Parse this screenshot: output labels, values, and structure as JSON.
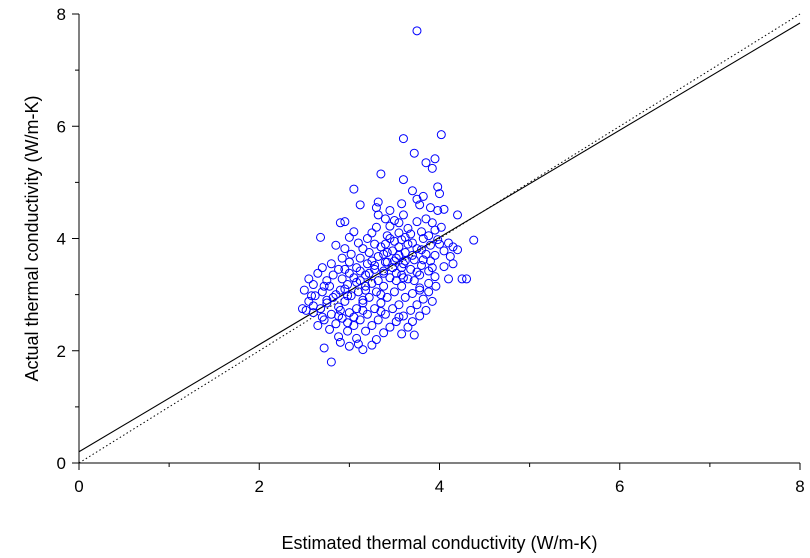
{
  "chart_data": {
    "type": "scatter",
    "title": "",
    "xlabel": "Estimated thermal conductivity (W/m-K)",
    "ylabel": "Actual thermal conductivity (W/m-K)",
    "xlim": [
      0,
      8
    ],
    "ylim": [
      0,
      8
    ],
    "xticks": [
      0,
      2,
      4,
      6,
      8
    ],
    "yticks": [
      0,
      2,
      4,
      6,
      8
    ],
    "xtick_labels": [
      "0",
      "2",
      "4",
      "6",
      "8"
    ],
    "ytick_labels": [
      "0",
      "2",
      "4",
      "6",
      "8"
    ],
    "grid": false,
    "marker": "open-circle",
    "point_color": "#0000ff",
    "regression_line": {
      "intercept": 0.2,
      "slope": 0.955,
      "style": "solid",
      "color": "#000000"
    },
    "identity_line": {
      "intercept": 0.0,
      "slope": 1.0,
      "style": "dotted",
      "color": "#000000"
    },
    "points": [
      [
        3.75,
        7.7
      ],
      [
        4.02,
        5.85
      ],
      [
        3.6,
        5.78
      ],
      [
        3.72,
        5.52
      ],
      [
        3.95,
        5.42
      ],
      [
        3.85,
        5.35
      ],
      [
        3.35,
        5.15
      ],
      [
        3.92,
        5.25
      ],
      [
        3.6,
        5.05
      ],
      [
        3.05,
        4.88
      ],
      [
        3.98,
        4.92
      ],
      [
        4.0,
        4.8
      ],
      [
        3.82,
        4.75
      ],
      [
        3.7,
        4.85
      ],
      [
        3.75,
        4.7
      ],
      [
        3.58,
        4.62
      ],
      [
        3.78,
        4.6
      ],
      [
        3.32,
        4.65
      ],
      [
        3.12,
        4.6
      ],
      [
        3.3,
        4.55
      ],
      [
        3.9,
        4.55
      ],
      [
        3.98,
        4.5
      ],
      [
        4.05,
        4.52
      ],
      [
        4.2,
        4.42
      ],
      [
        3.45,
        4.5
      ],
      [
        3.6,
        4.42
      ],
      [
        3.4,
        4.35
      ],
      [
        2.95,
        4.3
      ],
      [
        2.9,
        4.28
      ],
      [
        3.55,
        4.28
      ],
      [
        3.75,
        4.3
      ],
      [
        3.85,
        4.35
      ],
      [
        3.92,
        4.28
      ],
      [
        3.3,
        4.2
      ],
      [
        3.45,
        4.22
      ],
      [
        3.65,
        4.18
      ],
      [
        3.05,
        4.12
      ],
      [
        3.25,
        4.1
      ],
      [
        3.55,
        4.1
      ],
      [
        3.8,
        4.12
      ],
      [
        3.95,
        4.15
      ],
      [
        4.02,
        4.2
      ],
      [
        2.68,
        4.02
      ],
      [
        3.0,
        4.02
      ],
      [
        3.2,
        4.0
      ],
      [
        3.42,
        4.05
      ],
      [
        3.62,
        4.02
      ],
      [
        3.82,
        4.0
      ],
      [
        3.98,
        3.98
      ],
      [
        4.1,
        3.92
      ],
      [
        4.38,
        3.97
      ],
      [
        3.1,
        3.92
      ],
      [
        3.28,
        3.9
      ],
      [
        3.5,
        3.95
      ],
      [
        3.7,
        3.92
      ],
      [
        3.9,
        3.88
      ],
      [
        4.15,
        3.85
      ],
      [
        4.2,
        3.8
      ],
      [
        2.85,
        3.88
      ],
      [
        2.95,
        3.82
      ],
      [
        3.15,
        3.82
      ],
      [
        3.35,
        3.85
      ],
      [
        3.55,
        3.85
      ],
      [
        3.75,
        3.82
      ],
      [
        4.05,
        3.78
      ],
      [
        3.02,
        3.72
      ],
      [
        3.22,
        3.75
      ],
      [
        3.42,
        3.75
      ],
      [
        3.62,
        3.75
      ],
      [
        3.85,
        3.72
      ],
      [
        3.95,
        3.7
      ],
      [
        2.92,
        3.65
      ],
      [
        3.12,
        3.65
      ],
      [
        3.32,
        3.68
      ],
      [
        3.52,
        3.65
      ],
      [
        3.72,
        3.62
      ],
      [
        3.9,
        3.6
      ],
      [
        2.8,
        3.55
      ],
      [
        3.0,
        3.58
      ],
      [
        3.2,
        3.55
      ],
      [
        3.4,
        3.58
      ],
      [
        3.6,
        3.55
      ],
      [
        3.8,
        3.52
      ],
      [
        4.15,
        3.55
      ],
      [
        4.05,
        3.5
      ],
      [
        2.7,
        3.48
      ],
      [
        2.88,
        3.45
      ],
      [
        3.08,
        3.48
      ],
      [
        3.28,
        3.45
      ],
      [
        3.48,
        3.48
      ],
      [
        3.68,
        3.45
      ],
      [
        3.88,
        3.42
      ],
      [
        2.65,
        3.38
      ],
      [
        2.82,
        3.35
      ],
      [
        3.0,
        3.38
      ],
      [
        3.18,
        3.35
      ],
      [
        3.38,
        3.38
      ],
      [
        3.58,
        3.35
      ],
      [
        3.78,
        3.35
      ],
      [
        3.95,
        3.32
      ],
      [
        4.1,
        3.28
      ],
      [
        4.25,
        3.28
      ],
      [
        4.3,
        3.28
      ],
      [
        2.55,
        3.28
      ],
      [
        2.75,
        3.25
      ],
      [
        2.92,
        3.28
      ],
      [
        3.12,
        3.25
      ],
      [
        3.32,
        3.25
      ],
      [
        3.52,
        3.25
      ],
      [
        3.72,
        3.25
      ],
      [
        3.88,
        3.2
      ],
      [
        2.6,
        3.18
      ],
      [
        2.78,
        3.15
      ],
      [
        2.98,
        3.18
      ],
      [
        3.18,
        3.15
      ],
      [
        3.38,
        3.15
      ],
      [
        3.58,
        3.15
      ],
      [
        3.78,
        3.12
      ],
      [
        3.96,
        3.15
      ],
      [
        2.5,
        3.08
      ],
      [
        2.7,
        3.05
      ],
      [
        2.9,
        3.08
      ],
      [
        3.1,
        3.05
      ],
      [
        3.3,
        3.05
      ],
      [
        3.5,
        3.05
      ],
      [
        3.7,
        3.02
      ],
      [
        3.88,
        3.05
      ],
      [
        2.62,
        2.98
      ],
      [
        2.82,
        2.95
      ],
      [
        3.02,
        2.98
      ],
      [
        3.22,
        2.95
      ],
      [
        3.42,
        2.95
      ],
      [
        3.62,
        2.95
      ],
      [
        3.82,
        2.92
      ],
      [
        3.92,
        2.88
      ],
      [
        2.55,
        2.88
      ],
      [
        2.75,
        2.85
      ],
      [
        2.95,
        2.88
      ],
      [
        3.15,
        2.85
      ],
      [
        3.35,
        2.85
      ],
      [
        3.55,
        2.82
      ],
      [
        3.75,
        2.82
      ],
      [
        2.48,
        2.75
      ],
      [
        2.68,
        2.75
      ],
      [
        2.88,
        2.78
      ],
      [
        3.08,
        2.75
      ],
      [
        3.28,
        2.75
      ],
      [
        3.48,
        2.75
      ],
      [
        3.68,
        2.72
      ],
      [
        3.85,
        2.72
      ],
      [
        2.6,
        2.68
      ],
      [
        2.8,
        2.65
      ],
      [
        3.0,
        2.68
      ],
      [
        3.2,
        2.65
      ],
      [
        3.4,
        2.65
      ],
      [
        3.6,
        2.62
      ],
      [
        3.78,
        2.62
      ],
      [
        2.72,
        2.55
      ],
      [
        2.92,
        2.58
      ],
      [
        3.12,
        2.55
      ],
      [
        3.32,
        2.55
      ],
      [
        3.52,
        2.52
      ],
      [
        3.7,
        2.52
      ],
      [
        2.65,
        2.45
      ],
      [
        2.85,
        2.48
      ],
      [
        3.05,
        2.45
      ],
      [
        3.25,
        2.45
      ],
      [
        3.45,
        2.42
      ],
      [
        3.65,
        2.42
      ],
      [
        2.78,
        2.38
      ],
      [
        2.98,
        2.35
      ],
      [
        3.18,
        2.35
      ],
      [
        3.38,
        2.32
      ],
      [
        3.58,
        2.3
      ],
      [
        3.72,
        2.28
      ],
      [
        2.88,
        2.25
      ],
      [
        3.08,
        2.22
      ],
      [
        3.3,
        2.2
      ],
      [
        2.9,
        2.15
      ],
      [
        3.1,
        2.12
      ],
      [
        3.25,
        2.1
      ],
      [
        3.0,
        2.08
      ],
      [
        2.72,
        2.05
      ],
      [
        3.15,
        2.02
      ],
      [
        2.8,
        1.8
      ],
      [
        3.5,
        3.6
      ],
      [
        3.45,
        3.3
      ],
      [
        3.25,
        3.6
      ],
      [
        3.05,
        3.3
      ],
      [
        2.95,
        3.1
      ],
      [
        3.35,
        3.0
      ],
      [
        3.65,
        3.9
      ],
      [
        3.55,
        3.7
      ],
      [
        3.45,
        4.0
      ],
      [
        3.75,
        3.4
      ],
      [
        3.6,
        3.3
      ],
      [
        3.25,
        3.2
      ],
      [
        2.85,
        3.0
      ],
      [
        3.15,
        2.9
      ],
      [
        3.35,
        2.7
      ],
      [
        3.55,
        2.6
      ],
      [
        2.75,
        2.9
      ],
      [
        2.6,
        2.8
      ],
      [
        3.05,
        2.6
      ],
      [
        3.4,
        3.9
      ],
      [
        3.7,
        3.7
      ],
      [
        3.58,
        3.98
      ],
      [
        3.48,
        3.78
      ],
      [
        3.28,
        3.52
      ],
      [
        3.08,
        3.22
      ],
      [
        2.98,
        2.98
      ],
      [
        2.9,
        2.72
      ],
      [
        3.8,
        3.8
      ],
      [
        3.62,
        3.6
      ],
      [
        3.68,
        4.08
      ],
      [
        3.38,
        3.42
      ],
      [
        3.18,
        3.08
      ],
      [
        2.88,
        2.62
      ],
      [
        2.7,
        2.6
      ],
      [
        3.52,
        3.38
      ],
      [
        3.42,
        3.58
      ],
      [
        3.22,
        3.38
      ],
      [
        3.12,
        3.42
      ],
      [
        2.95,
        3.45
      ],
      [
        2.72,
        3.15
      ],
      [
        2.52,
        2.72
      ],
      [
        2.58,
        2.98
      ],
      [
        3.82,
        3.62
      ],
      [
        3.92,
        3.48
      ],
      [
        4.0,
        3.9
      ],
      [
        3.88,
        4.05
      ],
      [
        4.12,
        3.68
      ],
      [
        3.32,
        4.42
      ],
      [
        3.5,
        4.32
      ],
      [
        3.38,
        3.72
      ],
      [
        3.58,
        3.48
      ],
      [
        3.65,
        3.28
      ],
      [
        3.78,
        3.08
      ],
      [
        3.15,
        2.72
      ],
      [
        2.98,
        2.5
      ]
    ]
  }
}
